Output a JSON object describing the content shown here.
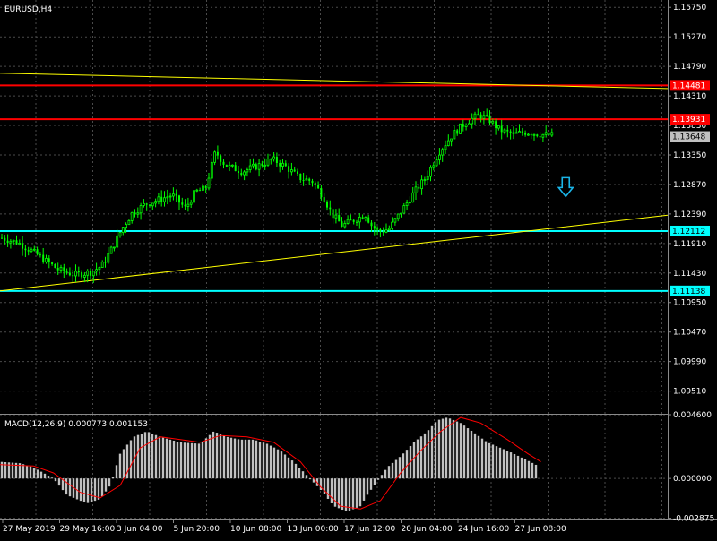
{
  "symbol_label": "EURUSD,H4",
  "macd_label": "MACD(12,26,9) 0.000773 0.001153",
  "colors": {
    "background": "#000000",
    "grid": "#4a4a4a",
    "text": "#ffffff",
    "candle": "#00ff00",
    "resistance": "#ff0000",
    "support": "#00ffff",
    "trendline": "#ffff00",
    "histogram": "#c0c0c0",
    "signal": "#ff0000",
    "bid_tag": "#c0c0c0",
    "arrow": "#1ab5e8"
  },
  "chart_data": [
    {
      "type": "candlestick",
      "title": "EURUSD,H4",
      "y_ticks": [
        "1.15750",
        "1.15270",
        "1.14790",
        "1.14310",
        "1.13830",
        "1.13350",
        "1.12870",
        "1.12390",
        "1.11910",
        "1.11430",
        "1.10950",
        "1.10470",
        "1.09990",
        "1.09510"
      ],
      "ylim": [
        1.0914,
        1.1587
      ],
      "x_tick_labels": [
        "27 May 2019",
        "29 May 16:00",
        "3 Jun 04:00",
        "5 Jun 20:00",
        "10 Jun 08:00",
        "13 Jun 00:00",
        "17 Jun 12:00",
        "20 Jun 04:00",
        "24 Jun 16:00",
        "27 Jun 08:00"
      ],
      "grid": true,
      "price_path": [
        [
          0,
          1.12
        ],
        [
          0.025,
          1.1192
        ],
        [
          0.05,
          1.1175
        ],
        [
          0.085,
          1.1148
        ],
        [
          0.11,
          1.114
        ],
        [
          0.135,
          1.1145
        ],
        [
          0.15,
          1.1155
        ],
        [
          0.165,
          1.1183
        ],
        [
          0.18,
          1.1215
        ],
        [
          0.195,
          1.124
        ],
        [
          0.215,
          1.1255
        ],
        [
          0.235,
          1.1262
        ],
        [
          0.255,
          1.127
        ],
        [
          0.275,
          1.1248
        ],
        [
          0.29,
          1.1275
        ],
        [
          0.305,
          1.128
        ],
        [
          0.32,
          1.134
        ],
        [
          0.335,
          1.1318
        ],
        [
          0.36,
          1.1308
        ],
        [
          0.385,
          1.1318
        ],
        [
          0.405,
          1.1328
        ],
        [
          0.425,
          1.1316
        ],
        [
          0.445,
          1.1298
        ],
        [
          0.465,
          1.1292
        ],
        [
          0.48,
          1.127
        ],
        [
          0.495,
          1.1238
        ],
        [
          0.51,
          1.122
        ],
        [
          0.525,
          1.1228
        ],
        [
          0.545,
          1.1238
        ],
        [
          0.555,
          1.1218
        ],
        [
          0.565,
          1.121
        ],
        [
          0.58,
          1.1215
        ],
        [
          0.595,
          1.1238
        ],
        [
          0.615,
          1.127
        ],
        [
          0.635,
          1.1298
        ],
        [
          0.655,
          1.134
        ],
        [
          0.675,
          1.1368
        ],
        [
          0.695,
          1.1388
        ],
        [
          0.715,
          1.14
        ],
        [
          0.73,
          1.1392
        ],
        [
          0.745,
          1.1376
        ],
        [
          0.765,
          1.1368
        ],
        [
          0.785,
          1.1372
        ],
        [
          0.81,
          1.1368
        ],
        [
          0.83,
          1.1366
        ]
      ],
      "levels": [
        {
          "label": "1.14481",
          "value": 1.14481,
          "color": "#ff0000"
        },
        {
          "label": "1.13931",
          "value": 1.13931,
          "color": "#ff0000"
        },
        {
          "label": "1.13648",
          "value": 1.13648,
          "color": "#c0c0c0",
          "kind": "bid"
        },
        {
          "label": "1.12112",
          "value": 1.12112,
          "color": "#00ffff"
        },
        {
          "label": "1.11138",
          "value": 1.11138,
          "color": "#00ffff"
        }
      ],
      "trendlines": [
        {
          "from": [
            0,
            1.1468
          ],
          "to": [
            1,
            1.1443
          ],
          "color": "#ffff00"
        },
        {
          "from": [
            0,
            1.1114
          ],
          "to": [
            1,
            1.1237
          ],
          "color": "#ffff00"
        }
      ],
      "annotations": [
        {
          "icon": "down-arrow-icon",
          "color": "#1ab5e8",
          "at": [
            0.85,
            1.1282
          ]
        }
      ]
    },
    {
      "type": "bar",
      "title": "MACD(12,26,9) 0.000773 0.001153",
      "y_ticks": [
        "0.004600",
        "0.000000",
        "-0.002875"
      ],
      "ylim": [
        -0.0029,
        0.0046
      ],
      "series": [
        {
          "name": "MACD",
          "kind": "histogram",
          "color": "#c0c0c0",
          "points": [
            [
              0,
              0.0012
            ],
            [
              0.03,
              0.0011
            ],
            [
              0.05,
              0.0008
            ],
            [
              0.08,
              0.0
            ],
            [
              0.1,
              -0.0012
            ],
            [
              0.13,
              -0.0018
            ],
            [
              0.15,
              -0.0015
            ],
            [
              0.165,
              -0.0005
            ],
            [
              0.18,
              0.0018
            ],
            [
              0.2,
              0.003
            ],
            [
              0.22,
              0.0034
            ],
            [
              0.24,
              0.003
            ],
            [
              0.27,
              0.0026
            ],
            [
              0.3,
              0.0025
            ],
            [
              0.32,
              0.0034
            ],
            [
              0.34,
              0.003
            ],
            [
              0.36,
              0.0028
            ],
            [
              0.38,
              0.0028
            ],
            [
              0.4,
              0.0025
            ],
            [
              0.42,
              0.002
            ],
            [
              0.44,
              0.0012
            ],
            [
              0.46,
              0.0002
            ],
            [
              0.48,
              -0.0008
            ],
            [
              0.5,
              -0.002
            ],
            [
              0.52,
              -0.0024
            ],
            [
              0.54,
              -0.002
            ],
            [
              0.55,
              -0.0012
            ],
            [
              0.565,
              -0.0002
            ],
            [
              0.58,
              0.0008
            ],
            [
              0.6,
              0.0016
            ],
            [
              0.62,
              0.0026
            ],
            [
              0.64,
              0.0034
            ],
            [
              0.655,
              0.0042
            ],
            [
              0.67,
              0.0044
            ],
            [
              0.69,
              0.004
            ],
            [
              0.71,
              0.0033
            ],
            [
              0.73,
              0.0026
            ],
            [
              0.76,
              0.002
            ],
            [
              0.79,
              0.0013
            ],
            [
              0.81,
              0.0008
            ]
          ]
        },
        {
          "name": "Signal",
          "kind": "line",
          "color": "#ff0000",
          "points": [
            [
              0,
              0.001
            ],
            [
              0.05,
              0.0009
            ],
            [
              0.08,
              0.0004
            ],
            [
              0.12,
              -0.001
            ],
            [
              0.15,
              -0.0014
            ],
            [
              0.18,
              -0.0005
            ],
            [
              0.21,
              0.0022
            ],
            [
              0.24,
              0.003
            ],
            [
              0.27,
              0.0028
            ],
            [
              0.3,
              0.0026
            ],
            [
              0.33,
              0.0031
            ],
            [
              0.37,
              0.003
            ],
            [
              0.41,
              0.0026
            ],
            [
              0.45,
              0.0012
            ],
            [
              0.48,
              -0.0006
            ],
            [
              0.51,
              -0.002
            ],
            [
              0.54,
              -0.0022
            ],
            [
              0.57,
              -0.0016
            ],
            [
              0.6,
              0.0004
            ],
            [
              0.63,
              0.002
            ],
            [
              0.66,
              0.0034
            ],
            [
              0.69,
              0.0044
            ],
            [
              0.72,
              0.004
            ],
            [
              0.76,
              0.0028
            ],
            [
              0.79,
              0.0018
            ],
            [
              0.81,
              0.0012
            ]
          ]
        }
      ]
    }
  ]
}
